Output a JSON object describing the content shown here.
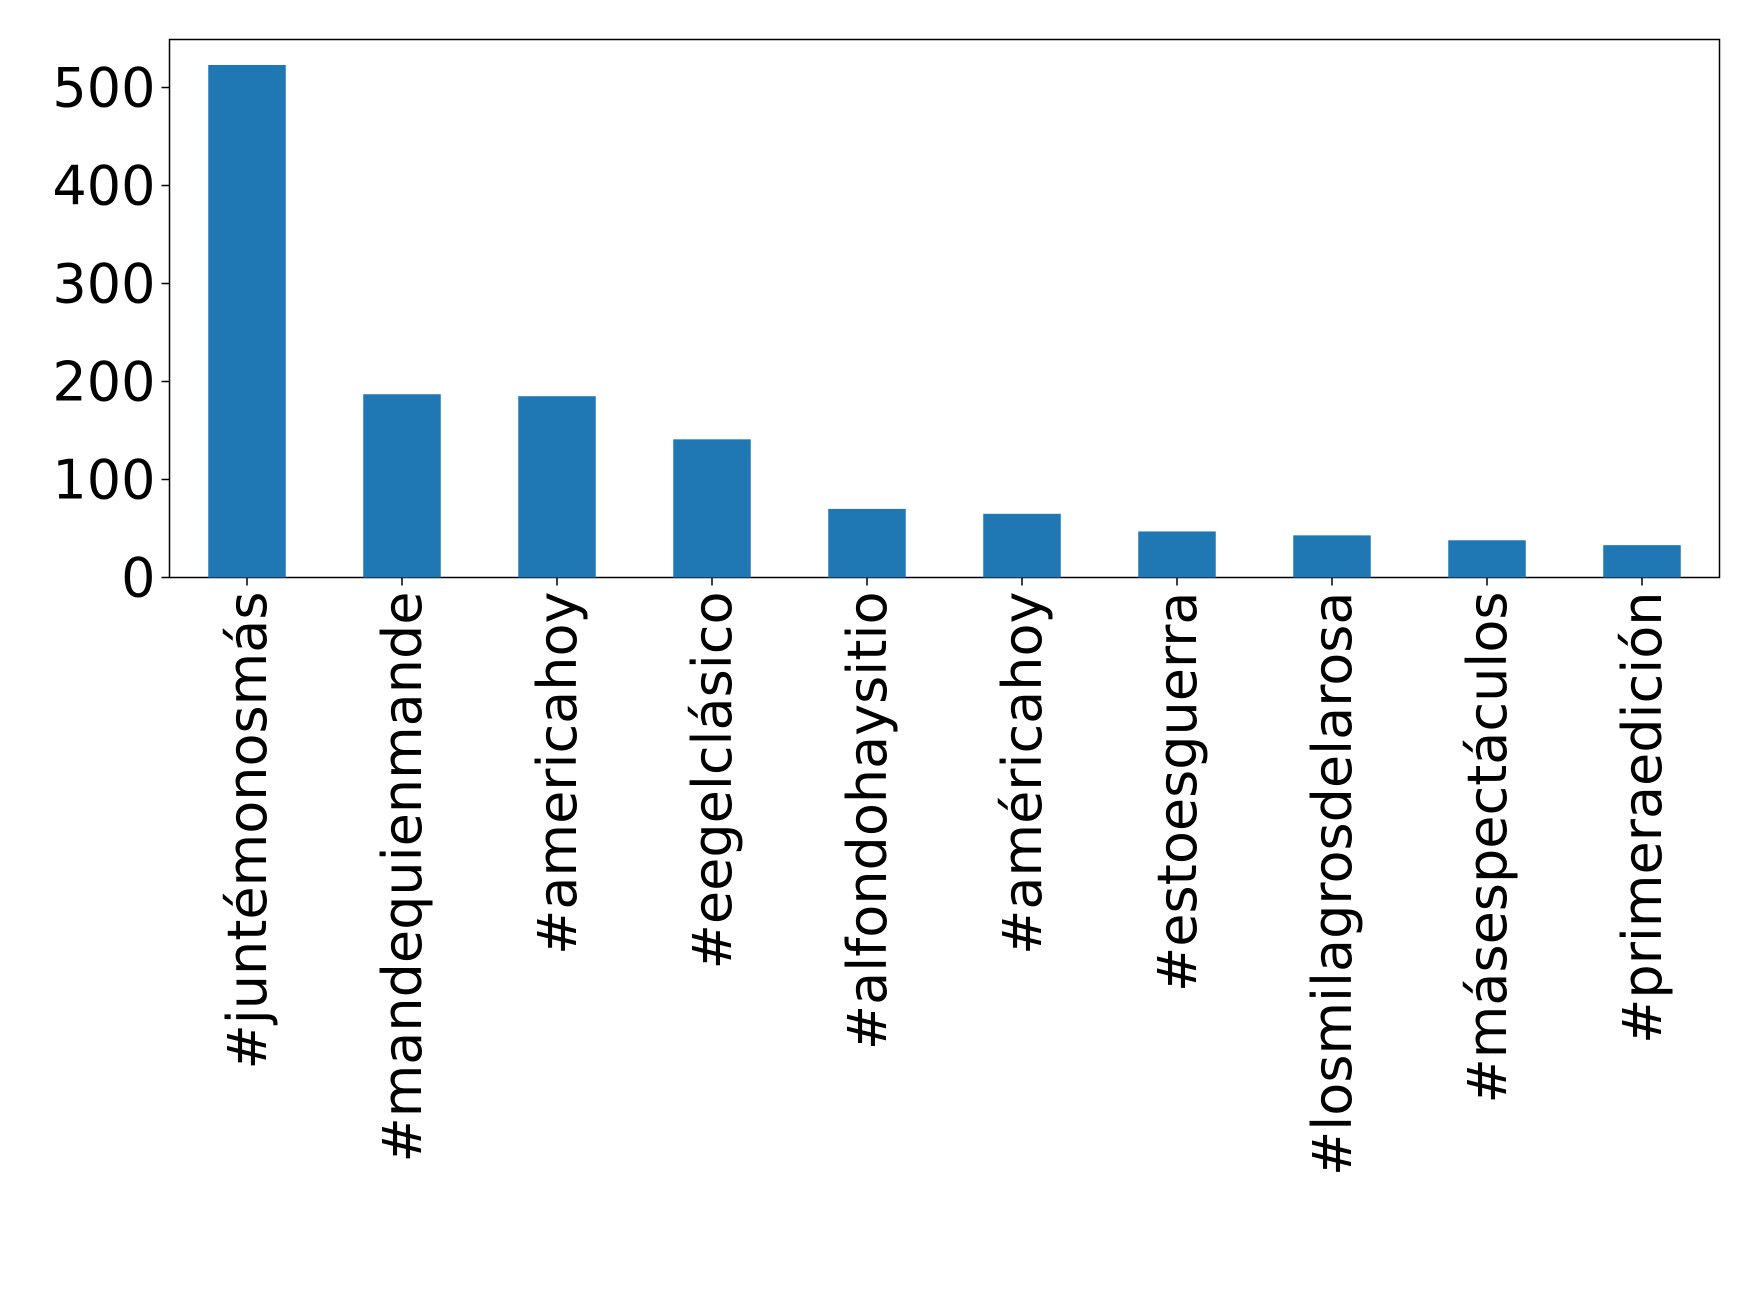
{
  "chart_data": {
    "type": "bar",
    "categories": [
      "#juntémonosmás",
      "#mandequienmande",
      "#americahoy",
      "#eegelclásico",
      "#alfondohaysitio",
      "#américahoy",
      "#estoesguerra",
      "#losmilagrosdelarosa",
      "#másespectáculos",
      "#primeraedición"
    ],
    "values": [
      523,
      187,
      185,
      141,
      70,
      65,
      47,
      43,
      38,
      33
    ],
    "color": "#1f77b4",
    "ylim": [
      0,
      549
    ],
    "yticks": [
      0,
      100,
      200,
      300,
      400,
      500
    ],
    "grid": false
  }
}
